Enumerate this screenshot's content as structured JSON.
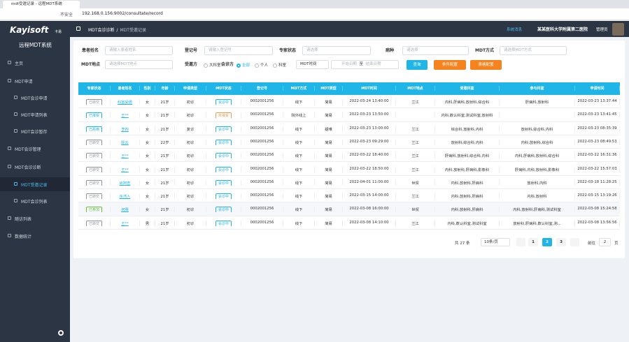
{
  "browser": {
    "tab_title": "mdt受邀记录 - 远程MDT系统",
    "insecure": "不安全",
    "url": "192.168.0.156:9002/consultate/record"
  },
  "sidebar": {
    "logo": "Kayisoft",
    "logo_small": "卡易",
    "system": "远程MDT系统",
    "menu": [
      {
        "label": "主页"
      },
      {
        "label": "MDT申请"
      },
      {
        "label": "MDT会诊申请",
        "sub": true
      },
      {
        "label": "MDT申请列表",
        "sub": true
      },
      {
        "label": "MDT会诊暂存",
        "sub": true
      },
      {
        "label": "MDT会诊管理"
      },
      {
        "label": "MDT会诊诊断"
      },
      {
        "label": "MDT受邀记录",
        "sub": true,
        "active": true
      },
      {
        "label": "MDT会诊列表",
        "sub": true
      },
      {
        "label": "随访列表"
      },
      {
        "label": "数据统计"
      }
    ]
  },
  "header": {
    "breadcrumb": [
      "MDT会诊诊断",
      "/",
      "MDT受邀记录"
    ],
    "message": "系统消息",
    "hospital": "某某医科大学附属第二医院",
    "user": "管理员"
  },
  "filters": {
    "patient_label": "患者姓名",
    "patient_ph": "请输入患者姓名",
    "reg_label": "登记号",
    "reg_ph": "请输入登记号",
    "expert_label": "专家状态",
    "expert_ph": "请选择",
    "disease_label": "病种",
    "disease_ph": "请选择",
    "mode_label": "MDT方式",
    "mode_ph": "请选择MDT方式",
    "place_label": "MDT地点",
    "place_ph": "请选择MDT地点",
    "invitee_label": "受邀方",
    "invitee_opt": "大科室",
    "party_label": "会诊方",
    "party_opts": [
      "全部",
      "个人",
      "科室"
    ],
    "time_select": "MDT时间",
    "start_ph": "开始日期",
    "to": "至",
    "end_ph": "结束日期",
    "search": "查询",
    "cond_config": "条件配置",
    "table_config": "表格配置"
  },
  "table": {
    "headers": [
      "专家状态",
      "患者姓名",
      "性别",
      "年龄",
      "申请类型",
      "MDT状态",
      "登记号",
      "MDT方式",
      "MDT类型",
      "MDT时间",
      "MDT地点",
      "受邀科室",
      "参与科室",
      "申请时间"
    ],
    "rows": [
      {
        "status_color": "#909399",
        "mdt_color": "#1fb5e6",
        "cells": [
          "已转交",
          "科室受邀",
          "女",
          "21岁",
          "初诊",
          "会诊中",
          "0002001256",
          "线下",
          "简易",
          "2022-03-24 13:40:00",
          "兰江",
          "内科,肝病科,放射科,综合科",
          "肝病科,放射科",
          "2022-03-23 13:37:44"
        ]
      },
      {
        "status_color": "#1fb5e6",
        "mdt_color": "#f39c52",
        "cells": [
          "已接受",
          "王**",
          "女",
          "21岁",
          "初诊",
          "未接受",
          "0002001256",
          "院外线上",
          "简易",
          "2022-03-23 13:50:00",
          "",
          "内科,数认科室,测试科室,放射科",
          "",
          "2022-03-23 13:41:45"
        ]
      },
      {
        "status_color": "#1fb5e6",
        "mdt_color": "#1fb5e6",
        "cells": [
          "已拒绝",
          "李四",
          "女",
          "21岁",
          "复诊",
          "会诊中",
          "0002001256",
          "线下",
          "疑难",
          "2022-03-23 13:00:00",
          "兰江",
          "综合科,放射科,内科",
          "放射科,综合科,内科",
          "2022-03-23 08:35:39"
        ]
      },
      {
        "status_color": "#909399",
        "mdt_color": "#1fb5e6",
        "cells": [
          "已转交",
          "陈云",
          "女",
          "22岁",
          "初诊",
          "会诊中",
          "0002001256",
          "线下",
          "简易",
          "2022-03-23 09:29:00",
          "兰江",
          "放射科,综合科,内科",
          "内科,放射科,综合科",
          "2022-03-23 08:49:53"
        ]
      },
      {
        "status_color": "#909399",
        "mdt_color": "#1fb5e6",
        "cells": [
          "已转交",
          "王**",
          "女",
          "21岁",
          "初诊",
          "会诊中",
          "0002001256",
          "线下",
          "简易",
          "2022-03-22 18:40:00",
          "兰江",
          "肝病科,放射科,综合科,内科",
          "内科,肝病科,放射科,综合科",
          "2022-03-22 16:31:36"
        ]
      },
      {
        "status_color": "#909399",
        "mdt_color": "#1fb5e6",
        "cells": [
          "已转交",
          "王**",
          "女",
          "21岁",
          "初诊",
          "会诊中",
          "0002001256",
          "线下",
          "简易",
          "2022-03-22 18:50:00",
          "兰江",
          "内科,放射科,肝病科,影像科",
          "肝病科,内科,放射科,影像科",
          "2022-03-22 15:57:03"
        ]
      },
      {
        "status_color": "#909399",
        "mdt_color": "#1fb5e6",
        "cells": [
          "已转交",
          "尚阿查",
          "女",
          "21岁",
          "初诊",
          "会诊中",
          "0002001256",
          "线下",
          "简易",
          "2022-04-01 11:00:00",
          "世贸",
          "内科,放射科,肝病科",
          "放射科,内科",
          "2022-03-18 11:28:25"
        ]
      },
      {
        "status_color": "#909399",
        "mdt_color": "#1fb5e6",
        "cells": [
          "已转交",
          "余湾入",
          "女",
          "21岁",
          "初诊",
          "会诊中",
          "0002001256",
          "线下",
          "简易",
          "2022-03-15 14:00:00",
          "兰江",
          "内科,放射科,肝病科",
          "内科,放射科",
          "2022-03-15 13:19:26"
        ]
      },
      {
        "status_color": "#67c23a",
        "mdt_color": "#1fb5e6",
        "cells": [
          "已参加",
          "何赛",
          "女",
          "21岁",
          "初诊",
          "会诊中",
          "0002001256",
          "线下",
          "简易",
          "2022-03-08 16:00:00",
          "世贸",
          "内科,放射科,肝病科",
          "内科,放射科,肝病科,测试科室",
          "2022-03-08 15:24:58"
        ]
      },
      {
        "status_color": "#909399",
        "mdt_color": "#1fb5e6",
        "cells": [
          "已转交",
          "王**",
          "男",
          "21岁",
          "初诊",
          "会诊中",
          "0002001256",
          "线下",
          "简易",
          "2022-03-08 14:10:00",
          "兰江",
          "内科,数认科室,测试科室",
          "放射科,肝病科,数认科室,测...",
          "2022-03-08 13:56:56"
        ]
      }
    ]
  },
  "pagination": {
    "total": "共 27 条",
    "page_size": "10条/页",
    "pages": [
      "1",
      "2",
      "3"
    ],
    "active": 1,
    "goto": "前往",
    "goto_value": "2",
    "page_unit": "页"
  }
}
